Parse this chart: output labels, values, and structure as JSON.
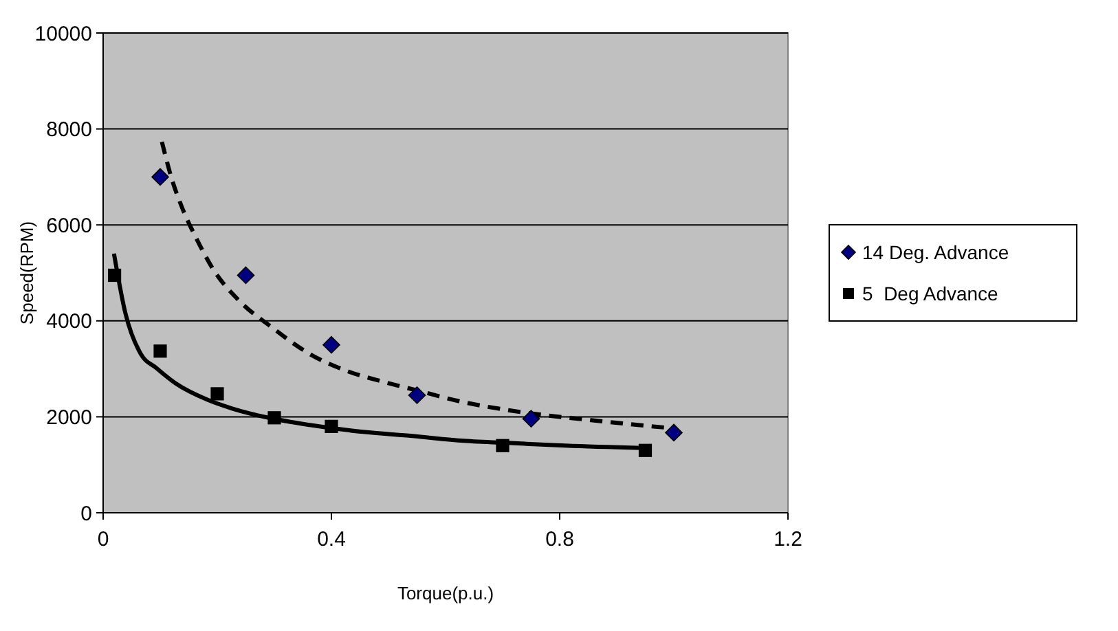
{
  "chart_data": {
    "type": "scatter",
    "xlabel": "Torque(p.u.)",
    "ylabel": "Speed(RPM)",
    "xlim": [
      0,
      1.2
    ],
    "xticks": [
      0,
      0.4,
      0.8,
      1.2
    ],
    "ylim": [
      0,
      10000
    ],
    "yticks": [
      0,
      2000,
      4000,
      6000,
      8000,
      10000
    ],
    "grid": "y",
    "legend": "right",
    "series": [
      {
        "name": "14 Deg. Advance",
        "marker": "diamond",
        "color": "#000080",
        "x": [
          0.1,
          0.25,
          0.4,
          0.55,
          0.75,
          1.0
        ],
        "values": [
          7000,
          4950,
          3500,
          2450,
          1960,
          1670
        ]
      },
      {
        "name": "5  Deg Advance",
        "marker": "square",
        "color": "#000000",
        "x": [
          0.02,
          0.1,
          0.2,
          0.3,
          0.4,
          0.7,
          0.95
        ],
        "values": [
          4950,
          3370,
          2480,
          1980,
          1800,
          1400,
          1300
        ]
      },
      {
        "type": "line",
        "line_style": "dashed",
        "color": "#000000",
        "x": [
          0.103,
          0.12,
          0.137,
          0.165,
          0.191,
          0.24,
          0.294,
          0.362,
          0.433,
          0.488,
          0.55,
          0.63,
          0.72,
          0.855,
          0.99
        ],
        "values": [
          7730,
          6970,
          6400,
          5680,
          5110,
          4400,
          3880,
          3310,
          2930,
          2740,
          2550,
          2310,
          2120,
          1930,
          1770
        ]
      },
      {
        "type": "line",
        "line_style": "solid",
        "color": "#000000",
        "x": [
          0.019,
          0.039,
          0.066,
          0.093,
          0.128,
          0.182,
          0.227,
          0.29,
          0.362,
          0.452,
          0.542,
          0.632,
          0.72,
          0.81,
          0.946
        ],
        "values": [
          5400,
          4160,
          3310,
          3020,
          2690,
          2360,
          2170,
          1980,
          1830,
          1690,
          1600,
          1500,
          1450,
          1400,
          1350
        ]
      }
    ]
  }
}
